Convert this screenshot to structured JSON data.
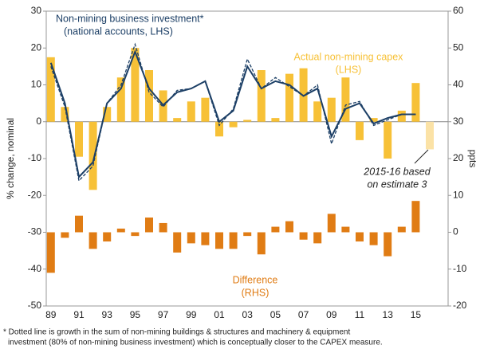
{
  "chart_data": {
    "type": "bar-line",
    "y_label": "% change, nominal",
    "y2_label": "ppts",
    "categories": [
      "89",
      null,
      "91",
      null,
      "93",
      null,
      "95",
      null,
      "97",
      null,
      "99",
      null,
      "01",
      null,
      "03",
      null,
      "05",
      null,
      "07",
      null,
      "09",
      null,
      "11",
      null,
      "13",
      null,
      "15",
      null
    ],
    "ylim": [
      -50,
      30
    ],
    "yticks": [
      -50,
      -40,
      -30,
      -20,
      -10,
      0,
      10,
      20,
      30
    ],
    "y2lim": [
      -20,
      60
    ],
    "y2ticks": [
      -20,
      -10,
      0,
      10,
      20,
      30,
      40,
      50,
      60
    ],
    "series": [
      {
        "name": "Actual non-mining capex (LHS)",
        "kind": "bar",
        "color": "#f7c137",
        "colors": [
          "#f7c137",
          "#f7c137",
          "#f7c137",
          "#f7c137",
          "#f7c137",
          "#f7c137",
          "#f7c137",
          "#f7c137",
          "#f7c137",
          "#f7c137",
          "#f7c137",
          "#f7c137",
          "#f7c137",
          "#f7c137",
          "#f7c137",
          "#f7c137",
          "#f7c137",
          "#f7c137",
          "#f7c137",
          "#f7c137",
          "#f7c137",
          "#f7c137",
          "#f7c137",
          "#f7c137",
          "#f7c137",
          "#f7c137",
          "#f7c137",
          "#fbe2a6"
        ],
        "values": [
          17.5,
          4,
          -9.5,
          -18.5,
          4,
          12,
          20,
          14,
          8.5,
          1,
          5.5,
          6.5,
          -4,
          -1.5,
          0.5,
          14,
          1,
          13,
          14.5,
          5.5,
          6.5,
          12,
          -5,
          1,
          -10,
          3,
          10.5,
          -7.5
        ]
      },
      {
        "name": "Difference (RHS)",
        "kind": "bar",
        "axis": "y2",
        "color": "#e07c14",
        "values": [
          -11,
          -1.5,
          4.5,
          -4.5,
          -2.5,
          1,
          -1,
          4,
          2.5,
          -5.5,
          -3,
          -3.5,
          -4.5,
          -4.5,
          -1,
          -6,
          1.5,
          3,
          -2,
          -3,
          5,
          1.5,
          -2.5,
          -3.5,
          -6.5,
          1.5,
          8.5,
          null
        ]
      },
      {
        "name": "Non-mining business investment* (national accounts, LHS)",
        "kind": "line",
        "color": "#1c3f66",
        "values": [
          16,
          5,
          -15,
          -11,
          5,
          9,
          19,
          9,
          4.5,
          8,
          9,
          11,
          0,
          3,
          15,
          9,
          11,
          10,
          7,
          9,
          -4,
          3.5,
          5,
          -0.5,
          1,
          2,
          2,
          null
        ]
      },
      {
        "name": "Dotted: buildings & structures plus machinery & equipment",
        "kind": "line",
        "dash": true,
        "color": "#1c3f66",
        "values": [
          15,
          4,
          -16,
          -12,
          5,
          10,
          21,
          8,
          4,
          8.5,
          9,
          11,
          -1,
          3.5,
          17,
          9,
          12,
          9.5,
          7,
          10,
          -6,
          4.5,
          5.5,
          -1,
          0.5,
          2,
          2,
          null
        ]
      }
    ],
    "annotations": {
      "line": [
        "Non-mining business investment*",
        "(national accounts, LHS)"
      ],
      "capex": [
        "Actual non-mining capex",
        "(LHS)"
      ],
      "difference": [
        "Difference",
        "(RHS)"
      ],
      "estimate": [
        "2015-16 based",
        "on estimate 3"
      ]
    },
    "footnote": [
      "* Dotted line is growth in the sum of non-mining buildings & structures and machinery & equipment",
      "investment (80% of non-mining business investment) which is conceptually closer to the CAPEX measure."
    ]
  }
}
